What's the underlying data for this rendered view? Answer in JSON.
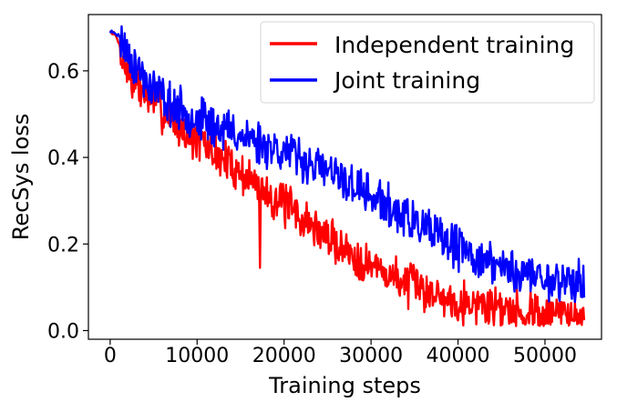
{
  "chart_data": {
    "type": "line",
    "xlabel": "Training steps",
    "ylabel": "RecSys loss",
    "xlim": [
      -2500,
      56500
    ],
    "ylim": [
      -0.02,
      0.73
    ],
    "xticks": [
      0,
      10000,
      20000,
      30000,
      40000,
      50000
    ],
    "xtick_labels": [
      "0",
      "10000",
      "20000",
      "30000",
      "40000",
      "50000"
    ],
    "yticks": [
      0.0,
      0.2,
      0.4,
      0.6
    ],
    "ytick_labels": [
      "0.0",
      "0.2",
      "0.4",
      "0.6"
    ],
    "grid": false,
    "legend_position": "top-right",
    "series": [
      {
        "name": "Independent training",
        "color": "#ff0000",
        "x": [
          0,
          500,
          1000,
          1500,
          2000,
          3000,
          4000,
          5000,
          6000,
          7000,
          8000,
          10000,
          12000,
          14000,
          16000,
          18000,
          20000,
          22000,
          24000,
          26000,
          28000,
          30000,
          32000,
          34000,
          36000,
          38000,
          40000,
          42000,
          44000,
          46000,
          48000,
          50000,
          52000,
          54500
        ],
        "values": [
          0.69,
          0.685,
          0.665,
          0.625,
          0.6,
          0.57,
          0.55,
          0.53,
          0.51,
          0.49,
          0.47,
          0.44,
          0.41,
          0.38,
          0.35,
          0.32,
          0.29,
          0.26,
          0.23,
          0.2,
          0.175,
          0.15,
          0.13,
          0.11,
          0.095,
          0.08,
          0.07,
          0.062,
          0.055,
          0.05,
          0.045,
          0.04,
          0.037,
          0.035
        ],
        "noise": 0.04
      },
      {
        "name": "Joint training",
        "color": "#0000ff",
        "x": [
          0,
          500,
          1000,
          1500,
          2000,
          3000,
          4000,
          6000,
          8000,
          10000,
          12000,
          14000,
          16000,
          18000,
          20000,
          22000,
          24000,
          26000,
          28000,
          30000,
          32000,
          34000,
          36000,
          38000,
          40000,
          42000,
          44000,
          46000,
          48000,
          50000,
          52000,
          54500
        ],
        "values": [
          0.69,
          0.69,
          0.68,
          0.665,
          0.645,
          0.61,
          0.58,
          0.54,
          0.51,
          0.49,
          0.475,
          0.46,
          0.445,
          0.43,
          0.415,
          0.395,
          0.375,
          0.355,
          0.335,
          0.31,
          0.285,
          0.26,
          0.235,
          0.21,
          0.19,
          0.17,
          0.155,
          0.14,
          0.13,
          0.12,
          0.115,
          0.11
        ],
        "noise": 0.04
      }
    ]
  }
}
